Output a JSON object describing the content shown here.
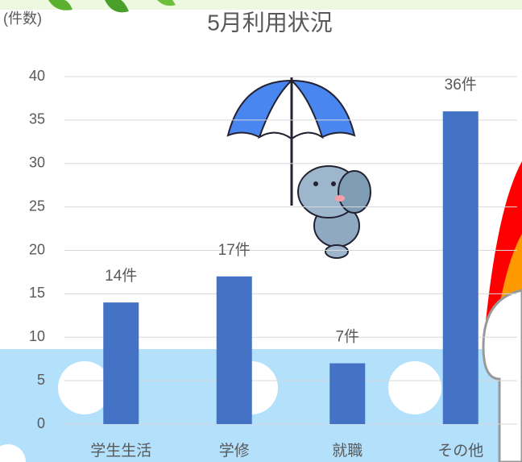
{
  "chart_data": {
    "type": "bar",
    "title": "5月利用状況",
    "y_label": "(件数)",
    "categories": [
      "学生生活",
      "学修",
      "就職",
      "その他"
    ],
    "values": [
      14,
      17,
      7,
      36
    ],
    "value_labels": [
      "14件",
      "17件",
      "7件",
      "36件"
    ],
    "color": "#4472c4",
    "ylim": [
      0,
      40
    ],
    "yticks": [
      0,
      5,
      10,
      15,
      20,
      25,
      30,
      35,
      40
    ],
    "grid": true
  }
}
